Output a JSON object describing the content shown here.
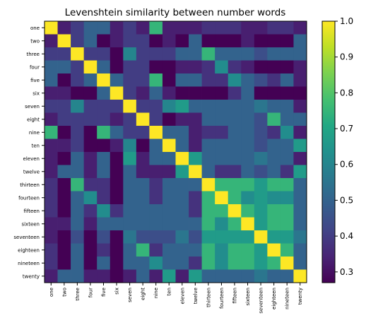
{
  "chart_data": {
    "type": "heatmap",
    "title": "Levenshtein similarity between number words",
    "xlabel": "",
    "ylabel": "",
    "categories": [
      "one",
      "two",
      "three",
      "four",
      "five",
      "six",
      "seven",
      "eight",
      "nine",
      "ten",
      "eleven",
      "twelve",
      "thirteen",
      "fourteen",
      "fifteen",
      "sixteen",
      "seventeen",
      "eighteen",
      "nineteen",
      "twenty"
    ],
    "values": [
      [
        1.0,
        0.333,
        0.4,
        0.5,
        0.5,
        0.333,
        0.4,
        0.333,
        0.75,
        0.333,
        0.333,
        0.333,
        0.375,
        0.375,
        0.375,
        0.333,
        0.333,
        0.375,
        0.375,
        0.333
      ],
      [
        0.333,
        1.0,
        0.4,
        0.5,
        0.25,
        0.333,
        0.4,
        0.4,
        0.25,
        0.333,
        0.167,
        0.5,
        0.25,
        0.25,
        0.25,
        0.333,
        0.222,
        0.25,
        0.25,
        0.5
      ],
      [
        0.4,
        0.4,
        1.0,
        0.4,
        0.4,
        0.2,
        0.6,
        0.4,
        0.4,
        0.4,
        0.5,
        0.5,
        0.75,
        0.5,
        0.5,
        0.5,
        0.444,
        0.5,
        0.5,
        0.5
      ],
      [
        0.5,
        0.5,
        0.4,
        1.0,
        0.5,
        0.25,
        0.4,
        0.4,
        0.25,
        0.25,
        0.333,
        0.333,
        0.375,
        0.625,
        0.375,
        0.333,
        0.222,
        0.25,
        0.25,
        0.333
      ],
      [
        0.5,
        0.25,
        0.4,
        0.5,
        1.0,
        0.5,
        0.4,
        0.4,
        0.75,
        0.25,
        0.5,
        0.5,
        0.375,
        0.375,
        0.625,
        0.5,
        0.444,
        0.375,
        0.5,
        0.333
      ],
      [
        0.333,
        0.333,
        0.2,
        0.25,
        0.5,
        1.0,
        0.4,
        0.333,
        0.5,
        0.333,
        0.167,
        0.167,
        0.25,
        0.125,
        0.375,
        0.5,
        0.222,
        0.25,
        0.25,
        0.167
      ],
      [
        0.4,
        0.4,
        0.6,
        0.4,
        0.4,
        0.4,
        1.0,
        0.4,
        0.4,
        0.6,
        0.667,
        0.5,
        0.5,
        0.5,
        0.5,
        0.5,
        0.556,
        0.5,
        0.5,
        0.333
      ],
      [
        0.333,
        0.4,
        0.4,
        0.4,
        0.4,
        0.333,
        0.4,
        1.0,
        0.4,
        0.2,
        0.333,
        0.333,
        0.5,
        0.5,
        0.5,
        0.5,
        0.444,
        0.75,
        0.5,
        0.5
      ],
      [
        0.75,
        0.25,
        0.4,
        0.25,
        0.75,
        0.5,
        0.4,
        0.4,
        1.0,
        0.5,
        0.5,
        0.333,
        0.375,
        0.375,
        0.5,
        0.5,
        0.444,
        0.375,
        0.625,
        0.333
      ],
      [
        0.333,
        0.333,
        0.4,
        0.25,
        0.25,
        0.333,
        0.6,
        0.2,
        0.5,
        1.0,
        0.5,
        0.333,
        0.5,
        0.5,
        0.5,
        0.5,
        0.444,
        0.5,
        0.5,
        0.667
      ],
      [
        0.333,
        0.167,
        0.5,
        0.333,
        0.5,
        0.167,
        0.667,
        0.333,
        0.5,
        0.5,
        1.0,
        0.667,
        0.5,
        0.5,
        0.5,
        0.5,
        0.556,
        0.5,
        0.5,
        0.333
      ],
      [
        0.333,
        0.5,
        0.5,
        0.333,
        0.5,
        0.167,
        0.5,
        0.333,
        0.333,
        0.333,
        0.667,
        1.0,
        0.5,
        0.375,
        0.375,
        0.5,
        0.444,
        0.5,
        0.375,
        0.667
      ],
      [
        0.375,
        0.25,
        0.75,
        0.375,
        0.375,
        0.25,
        0.5,
        0.5,
        0.375,
        0.5,
        0.5,
        0.5,
        1.0,
        0.75,
        0.75,
        0.75,
        0.667,
        0.75,
        0.75,
        0.5
      ],
      [
        0.375,
        0.25,
        0.5,
        0.625,
        0.375,
        0.125,
        0.5,
        0.5,
        0.375,
        0.5,
        0.5,
        0.375,
        0.75,
        1.0,
        0.75,
        0.625,
        0.667,
        0.625,
        0.625,
        0.5
      ],
      [
        0.375,
        0.25,
        0.5,
        0.375,
        0.625,
        0.375,
        0.5,
        0.5,
        0.5,
        0.5,
        0.5,
        0.375,
        0.75,
        0.75,
        1.0,
        0.75,
        0.667,
        0.75,
        0.75,
        0.5
      ],
      [
        0.333,
        0.333,
        0.5,
        0.333,
        0.5,
        0.5,
        0.5,
        0.5,
        0.5,
        0.5,
        0.5,
        0.5,
        0.75,
        0.625,
        0.75,
        1.0,
        0.667,
        0.75,
        0.75,
        0.5
      ],
      [
        0.333,
        0.222,
        0.444,
        0.222,
        0.444,
        0.222,
        0.556,
        0.444,
        0.444,
        0.444,
        0.556,
        0.444,
        0.667,
        0.667,
        0.667,
        0.667,
        1.0,
        0.667,
        0.667,
        0.556
      ],
      [
        0.375,
        0.25,
        0.5,
        0.25,
        0.375,
        0.25,
        0.5,
        0.75,
        0.375,
        0.5,
        0.5,
        0.5,
        0.75,
        0.625,
        0.75,
        0.75,
        0.667,
        1.0,
        0.75,
        0.5
      ],
      [
        0.375,
        0.25,
        0.5,
        0.25,
        0.5,
        0.25,
        0.5,
        0.5,
        0.625,
        0.5,
        0.5,
        0.375,
        0.75,
        0.625,
        0.75,
        0.75,
        0.667,
        0.75,
        1.0,
        0.5
      ],
      [
        0.333,
        0.5,
        0.5,
        0.333,
        0.333,
        0.167,
        0.333,
        0.5,
        0.333,
        0.667,
        0.333,
        0.667,
        0.5,
        0.5,
        0.5,
        0.5,
        0.556,
        0.5,
        0.5,
        1.0
      ]
    ],
    "colorbar": {
      "colormap": "viridis",
      "range": [
        0.27,
        1.0
      ],
      "ticks": [
        "0.3",
        "0.4",
        "0.5",
        "0.6",
        "0.7",
        "0.8",
        "0.9",
        "1.0"
      ]
    },
    "grid": false,
    "legend": "colorbar-right"
  }
}
